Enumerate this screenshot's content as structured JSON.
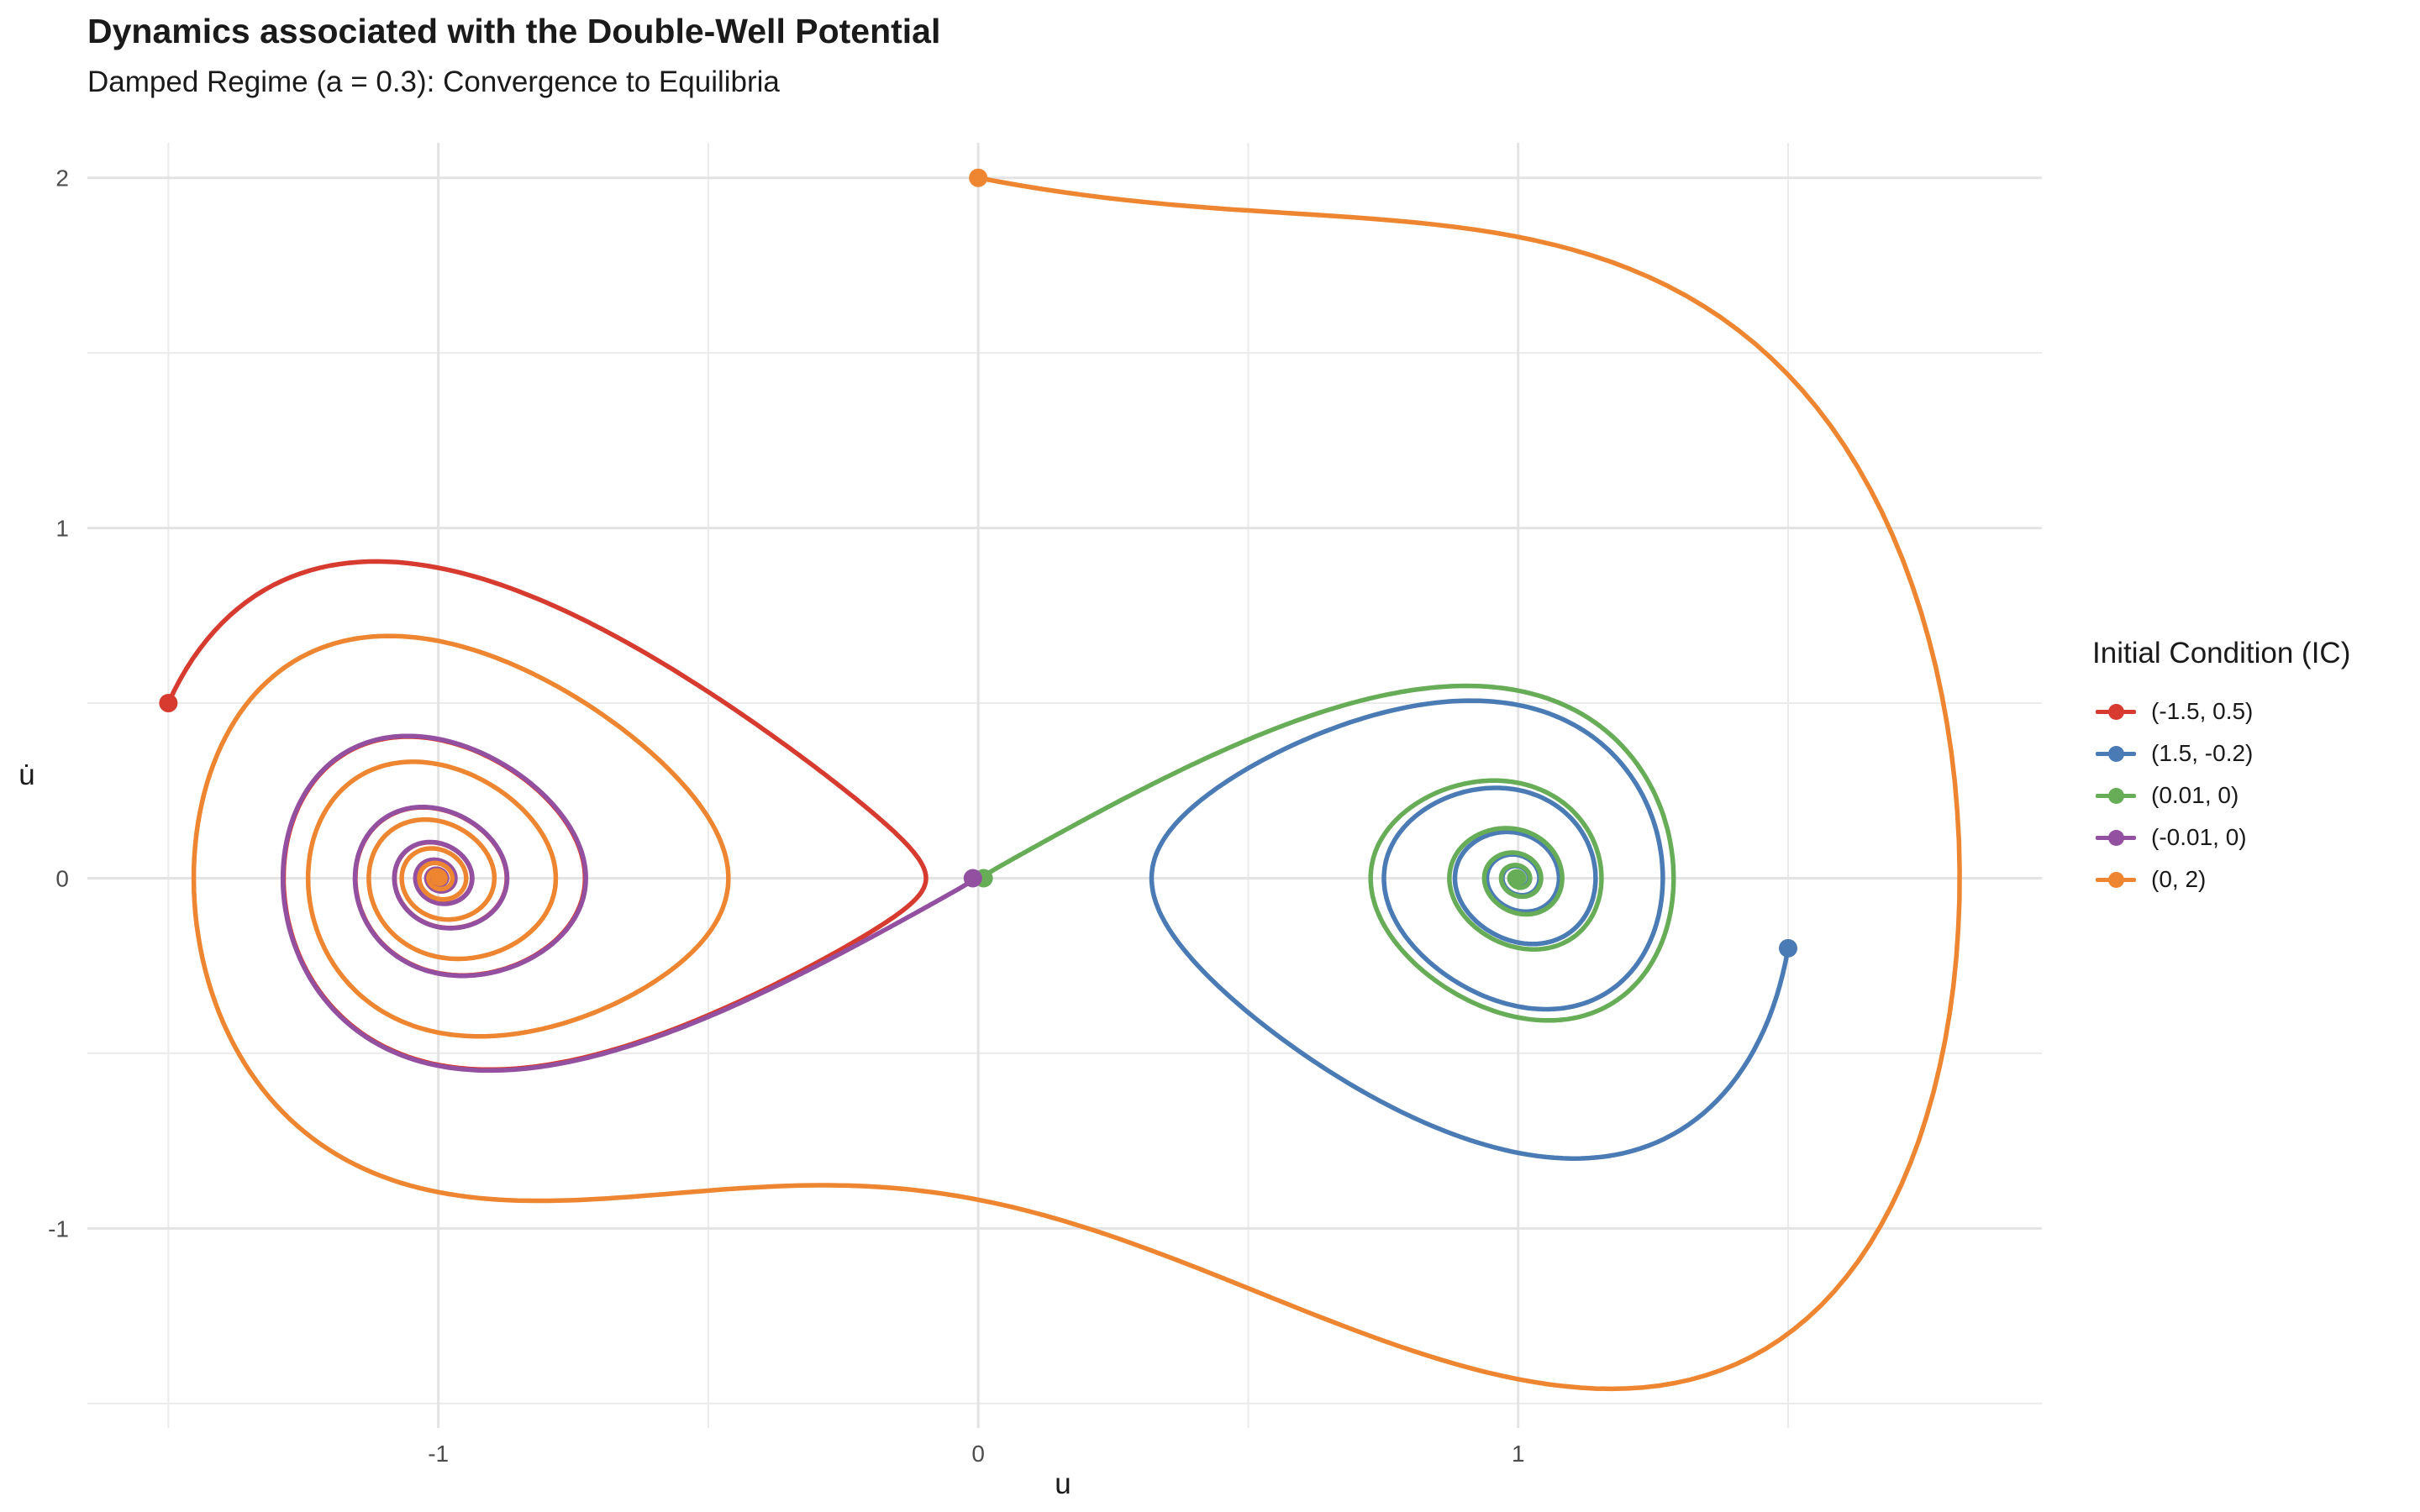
{
  "chart_data": {
    "type": "line",
    "title": "Dynamics associated with the Double-Well Potential",
    "subtitle": "Damped Regime (a = 0.3): Convergence to Equilibria",
    "xlabel": "u",
    "ylabel": "u̇",
    "xlim": [
      -1.65,
      1.97
    ],
    "ylim": [
      -1.57,
      2.1
    ],
    "x_ticks": [
      -1,
      0,
      1
    ],
    "y_ticks": [
      -1,
      0,
      1,
      2
    ],
    "grid": true,
    "legend_position": "right",
    "legend_title": "Initial Condition (IC)",
    "damping": 0.3,
    "t_end": 40,
    "series": [
      {
        "name": "(-1.5, 0.5)",
        "color": "#d73b30",
        "u0": -1.5,
        "v0": 0.5
      },
      {
        "name": "(1.5, -0.2)",
        "color": "#4a7bb5",
        "u0": 1.5,
        "v0": -0.2
      },
      {
        "name": "(0.01, 0)",
        "color": "#67ad57",
        "u0": 0.01,
        "v0": 0
      },
      {
        "name": "(-0.01, 0)",
        "color": "#9350a1",
        "u0": -0.01,
        "v0": 0
      },
      {
        "name": "(0, 2)",
        "color": "#ee8531",
        "u0": 0,
        "v0": 2
      }
    ]
  }
}
